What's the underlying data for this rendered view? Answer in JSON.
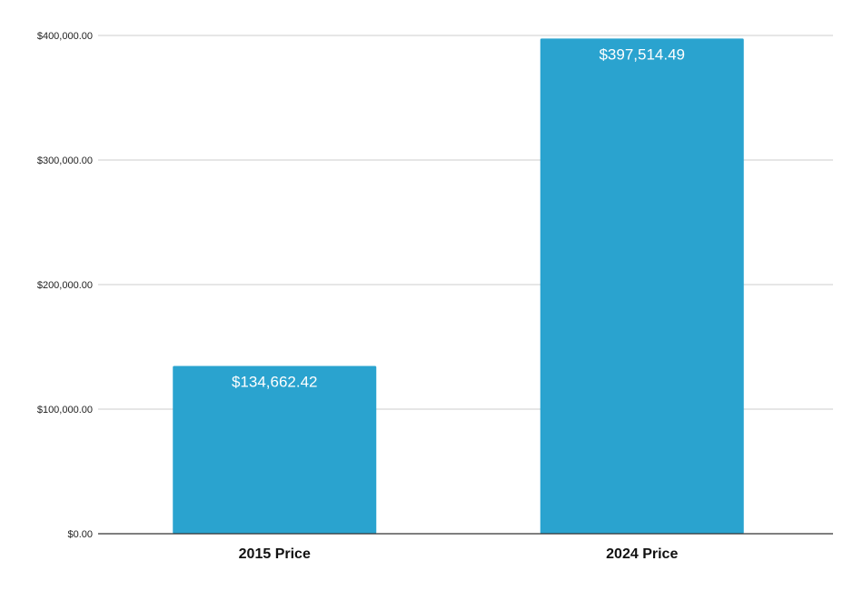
{
  "chart_data": {
    "type": "bar",
    "title": "",
    "xlabel": "",
    "ylabel": "",
    "categories": [
      "2015 Price",
      "2024 Price"
    ],
    "values": [
      134662.42,
      397514.49
    ],
    "data_labels": [
      "$134,662.42",
      "$397,514.49"
    ],
    "ylim": [
      0,
      400000
    ],
    "y_ticks": [
      0,
      100000,
      200000,
      300000,
      400000
    ],
    "y_tick_labels": [
      "$0.00",
      "$100,000.00",
      "$200,000.00",
      "$300,000.00",
      "$400,000.00"
    ],
    "grid": true,
    "legend": "none",
    "bar_color": "#2aa3cf",
    "label_color": "#ffffff"
  }
}
